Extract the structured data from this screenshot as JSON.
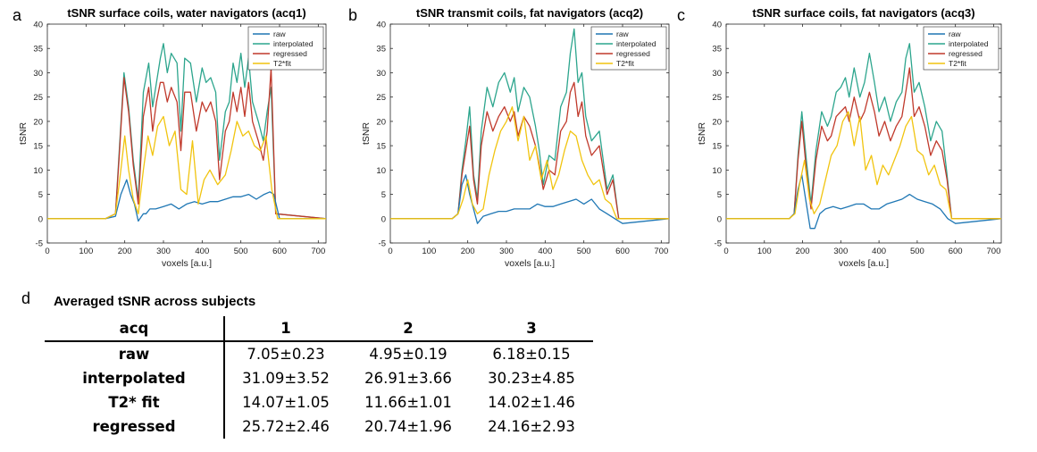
{
  "panel_letters": [
    "a",
    "b",
    "c",
    "d"
  ],
  "chart_data": [
    {
      "type": "line",
      "title": "tSNR surface coils, water navigators (acq1)",
      "xlabel": "voxels [a.u.]",
      "ylabel": "tSNR",
      "xlim": [
        0,
        720
      ],
      "ylim": [
        -5,
        40
      ],
      "xticks": [
        0,
        100,
        200,
        300,
        400,
        500,
        600,
        700
      ],
      "yticks": [
        -5,
        0,
        5,
        10,
        15,
        20,
        25,
        30,
        35,
        40
      ],
      "legend_position": "top-right",
      "series": [
        {
          "name": "raw",
          "color": "#1f77b4",
          "x": [
            0,
            150,
            176,
            190,
            205,
            215,
            225,
            235,
            248,
            255,
            265,
            280,
            300,
            320,
            340,
            360,
            380,
            400,
            420,
            440,
            460,
            480,
            500,
            520,
            540,
            560,
            575,
            585,
            600,
            720
          ],
          "y": [
            0,
            0,
            0.5,
            5,
            8,
            5,
            3,
            -0.5,
            1,
            1,
            2,
            2,
            2.5,
            3,
            2,
            3,
            3.5,
            3,
            3.5,
            3.5,
            4,
            4.5,
            4.5,
            5,
            4,
            5,
            5.5,
            5,
            0,
            0
          ]
        },
        {
          "name": "interpolated",
          "color": "#2ca58d",
          "x": [
            0,
            150,
            176,
            185,
            198,
            210,
            222,
            235,
            248,
            262,
            272,
            282,
            292,
            300,
            310,
            320,
            335,
            345,
            355,
            370,
            385,
            400,
            410,
            422,
            435,
            445,
            460,
            470,
            480,
            490,
            500,
            510,
            520,
            530,
            545,
            558,
            568,
            578,
            590,
            720
          ],
          "y": [
            0,
            0,
            1,
            13,
            30,
            23,
            12,
            4,
            26,
            32,
            23,
            28,
            33,
            36,
            30,
            34,
            32,
            18,
            33,
            32,
            24,
            31,
            28,
            29,
            26,
            12,
            22,
            24,
            32,
            28,
            34,
            27,
            33,
            24,
            20,
            16,
            22,
            27,
            1,
            0
          ]
        },
        {
          "name": "regressed",
          "color": "#c0392b",
          "x": [
            0,
            150,
            176,
            185,
            198,
            210,
            222,
            235,
            248,
            262,
            272,
            282,
            292,
            300,
            310,
            320,
            335,
            345,
            355,
            370,
            385,
            400,
            410,
            422,
            435,
            445,
            460,
            470,
            480,
            490,
            500,
            510,
            520,
            530,
            545,
            558,
            568,
            578,
            590,
            720
          ],
          "y": [
            0,
            0,
            1,
            12,
            29,
            22,
            11,
            3,
            21,
            27,
            18,
            24,
            28,
            28,
            24,
            27,
            24,
            14,
            26,
            26,
            18,
            24,
            22,
            24,
            20,
            8,
            18,
            20,
            26,
            22,
            27,
            21,
            28,
            20,
            16,
            12,
            18,
            31,
            1,
            0
          ]
        },
        {
          "name": "T2*fit",
          "color": "#f1c40f",
          "x": [
            0,
            150,
            176,
            190,
            200,
            210,
            222,
            235,
            248,
            260,
            272,
            285,
            300,
            315,
            330,
            345,
            360,
            375,
            390,
            405,
            420,
            440,
            460,
            475,
            490,
            505,
            520,
            535,
            550,
            565,
            580,
            595,
            720
          ],
          "y": [
            0,
            0,
            1,
            10,
            17,
            10,
            4,
            1,
            10,
            17,
            13,
            19,
            21,
            15,
            18,
            6,
            5,
            16,
            3,
            8,
            10,
            7,
            9,
            14,
            20,
            17,
            18,
            15,
            14,
            17,
            6,
            0,
            0
          ]
        }
      ]
    },
    {
      "type": "line",
      "title": "tSNR transmit coils, fat navigators (acq2)",
      "xlabel": "voxels [a.u.]",
      "ylabel": "tSNR",
      "xlim": [
        0,
        720
      ],
      "ylim": [
        -5,
        40
      ],
      "xticks": [
        0,
        100,
        200,
        300,
        400,
        500,
        600,
        700
      ],
      "yticks": [
        -5,
        0,
        5,
        10,
        15,
        20,
        25,
        30,
        35,
        40
      ],
      "legend_position": "top-right",
      "series": [
        {
          "name": "raw",
          "color": "#1f77b4",
          "x": [
            0,
            160,
            175,
            185,
            195,
            205,
            215,
            225,
            240,
            260,
            280,
            300,
            320,
            340,
            360,
            380,
            400,
            420,
            440,
            460,
            480,
            500,
            520,
            540,
            560,
            580,
            600,
            720
          ],
          "y": [
            0,
            0,
            1,
            7,
            9,
            5,
            2,
            -1,
            0.5,
            1,
            1.5,
            1.5,
            2,
            2,
            2,
            3,
            2.5,
            2.5,
            3,
            3.5,
            4,
            3,
            4,
            2,
            1,
            0,
            -1,
            0
          ]
        },
        {
          "name": "interpolated",
          "color": "#2ca58d",
          "x": [
            0,
            160,
            175,
            185,
            195,
            205,
            215,
            225,
            235,
            250,
            265,
            280,
            295,
            310,
            320,
            330,
            345,
            360,
            375,
            385,
            395,
            410,
            425,
            440,
            455,
            465,
            475,
            485,
            495,
            505,
            520,
            540,
            560,
            575,
            590,
            720
          ],
          "y": [
            0,
            0,
            1,
            10,
            16,
            23,
            9,
            4,
            18,
            27,
            23,
            28,
            30,
            26,
            29,
            22,
            27,
            25,
            19,
            14,
            7,
            13,
            12,
            23,
            26,
            34,
            39,
            28,
            30,
            21,
            16,
            18,
            6,
            9,
            0,
            0
          ]
        },
        {
          "name": "regressed",
          "color": "#c0392b",
          "x": [
            0,
            160,
            175,
            185,
            195,
            205,
            215,
            225,
            235,
            250,
            265,
            280,
            295,
            310,
            320,
            330,
            345,
            360,
            375,
            385,
            395,
            410,
            425,
            440,
            455,
            465,
            475,
            485,
            495,
            505,
            520,
            540,
            560,
            575,
            590,
            720
          ],
          "y": [
            0,
            0,
            1,
            9,
            14,
            19,
            8,
            3,
            15,
            22,
            18,
            21,
            23,
            20,
            22,
            17,
            21,
            19,
            15,
            11,
            6,
            10,
            9,
            18,
            20,
            26,
            28,
            21,
            24,
            17,
            13,
            15,
            5,
            8,
            0,
            0
          ]
        },
        {
          "name": "T2*fit",
          "color": "#f1c40f",
          "x": [
            0,
            160,
            175,
            188,
            200,
            212,
            225,
            240,
            255,
            270,
            285,
            300,
            315,
            330,
            345,
            360,
            375,
            390,
            405,
            420,
            435,
            450,
            465,
            480,
            495,
            510,
            525,
            540,
            555,
            570,
            585,
            720
          ],
          "y": [
            0,
            0,
            1,
            4,
            8,
            3,
            1,
            2,
            9,
            14,
            18,
            20,
            23,
            16,
            21,
            12,
            15,
            8,
            12,
            6,
            9,
            14,
            18,
            17,
            12,
            9,
            7,
            8,
            4,
            3,
            0,
            0
          ]
        }
      ]
    },
    {
      "type": "line",
      "title": "tSNR surface coils, fat navigators (acq3)",
      "xlabel": "voxels [a.u.]",
      "ylabel": "tSNR",
      "xlim": [
        0,
        720
      ],
      "ylim": [
        -5,
        40
      ],
      "xticks": [
        0,
        100,
        200,
        300,
        400,
        500,
        600,
        700
      ],
      "yticks": [
        -5,
        0,
        5,
        10,
        15,
        20,
        25,
        30,
        35,
        40
      ],
      "legend_position": "top-right",
      "series": [
        {
          "name": "raw",
          "color": "#1f77b4",
          "x": [
            0,
            165,
            178,
            188,
            198,
            210,
            220,
            232,
            245,
            260,
            280,
            300,
            320,
            340,
            360,
            380,
            400,
            420,
            440,
            460,
            480,
            500,
            520,
            540,
            560,
            580,
            600,
            720
          ],
          "y": [
            0,
            0,
            1,
            6,
            9,
            3,
            -2,
            -2,
            1,
            2,
            2.5,
            2,
            2.5,
            3,
            3,
            2,
            2,
            3,
            3.5,
            4,
            5,
            4,
            3.5,
            3,
            2,
            0,
            -1,
            0
          ]
        },
        {
          "name": "interpolated",
          "color": "#2ca58d",
          "x": [
            0,
            165,
            178,
            188,
            198,
            210,
            222,
            235,
            250,
            265,
            275,
            288,
            300,
            312,
            322,
            335,
            350,
            362,
            375,
            388,
            400,
            415,
            430,
            445,
            460,
            470,
            480,
            492,
            505,
            520,
            535,
            550,
            565,
            578,
            590,
            720
          ],
          "y": [
            0,
            0,
            1,
            13,
            22,
            12,
            3,
            14,
            22,
            19,
            21,
            26,
            27,
            29,
            25,
            31,
            25,
            28,
            34,
            28,
            22,
            25,
            20,
            24,
            26,
            33,
            36,
            26,
            28,
            23,
            16,
            20,
            18,
            9,
            0,
            0
          ]
        },
        {
          "name": "regressed",
          "color": "#c0392b",
          "x": [
            0,
            165,
            178,
            188,
            198,
            210,
            222,
            235,
            250,
            265,
            275,
            288,
            300,
            312,
            322,
            335,
            350,
            362,
            375,
            388,
            400,
            415,
            430,
            445,
            460,
            470,
            480,
            492,
            505,
            520,
            535,
            550,
            565,
            578,
            590,
            720
          ],
          "y": [
            0,
            0,
            1,
            12,
            20,
            10,
            2,
            12,
            19,
            16,
            17,
            21,
            22,
            23,
            20,
            25,
            20,
            22,
            26,
            22,
            17,
            20,
            16,
            19,
            21,
            26,
            31,
            21,
            23,
            19,
            13,
            16,
            14,
            8,
            0,
            0
          ]
        },
        {
          "name": "T2*fit",
          "color": "#f1c40f",
          "x": [
            0,
            165,
            180,
            192,
            205,
            218,
            230,
            245,
            260,
            275,
            290,
            305,
            320,
            335,
            350,
            365,
            380,
            395,
            410,
            425,
            440,
            455,
            470,
            485,
            500,
            515,
            530,
            545,
            560,
            575,
            590,
            720
          ],
          "y": [
            0,
            0,
            1,
            7,
            12,
            4,
            1,
            3,
            8,
            13,
            15,
            20,
            22,
            15,
            21,
            10,
            13,
            7,
            11,
            9,
            12,
            15,
            19,
            21,
            14,
            13,
            9,
            11,
            7,
            6,
            0,
            0
          ]
        }
      ]
    }
  ],
  "table": {
    "title": "Averaged tSNR across subjects",
    "headers": [
      "acq",
      "1",
      "2",
      "3"
    ],
    "rows": [
      [
        "raw",
        "7.05±0.23",
        "4.95±0.19",
        "6.18±0.15"
      ],
      [
        "interpolated",
        "31.09±3.52",
        "26.91±3.66",
        "30.23±4.85"
      ],
      [
        "T2* fit",
        "14.07±1.05",
        "11.66±1.01",
        "14.02±1.46"
      ],
      [
        "regressed",
        "25.72±2.46",
        "20.74±1.96",
        "24.16±2.93"
      ]
    ]
  }
}
